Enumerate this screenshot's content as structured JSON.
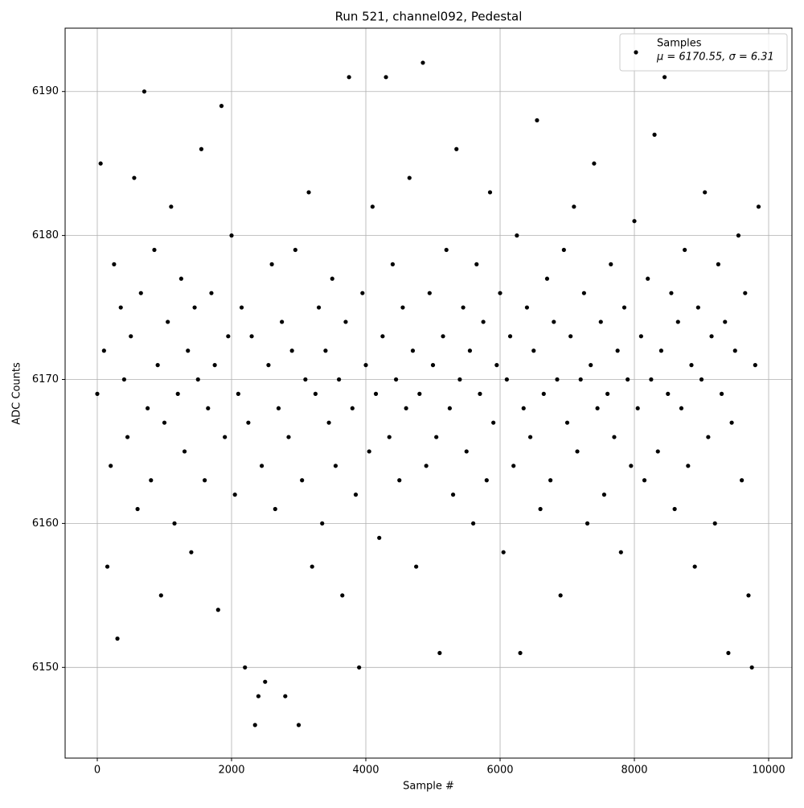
{
  "chart_data": {
    "type": "scatter",
    "title": "Run 521, channel092, Pedestal",
    "x_label": "Sample #",
    "y_label": "ADC Counts",
    "xlim": [
      -479,
      10347
    ],
    "ylim": [
      6143.7,
      6194.4
    ],
    "xticks": [
      0,
      2000,
      4000,
      6000,
      8000,
      10000
    ],
    "yticks": [
      6150,
      6160,
      6170,
      6180,
      6190
    ],
    "grid": true,
    "legend": "upper right",
    "series": [
      {
        "name": "Samples",
        "stats": "μ = 6170.55, σ = 6.31",
        "color": "#000000",
        "x": [
          0,
          50,
          100,
          150,
          200,
          250,
          300,
          350,
          400,
          450,
          500,
          550,
          600,
          650,
          700,
          750,
          800,
          850,
          900,
          950,
          1000,
          1050,
          1100,
          1150,
          1200,
          1250,
          1300,
          1350,
          1400,
          1450,
          1500,
          1550,
          1600,
          1650,
          1700,
          1750,
          1800,
          1850,
          1900,
          1950,
          2000,
          2050,
          2100,
          2150,
          2200,
          2250,
          2300,
          2350,
          2400,
          2450,
          2500,
          2550,
          2600,
          2650,
          2700,
          2750,
          2800,
          2850,
          2900,
          2950,
          3000,
          3050,
          3100,
          3150,
          3200,
          3250,
          3300,
          3350,
          3400,
          3450,
          3500,
          3550,
          3600,
          3650,
          3700,
          3750,
          3800,
          3850,
          3900,
          3950,
          4000,
          4050,
          4100,
          4150,
          4200,
          4250,
          4300,
          4350,
          4400,
          4450,
          4500,
          4550,
          4600,
          4650,
          4700,
          4750,
          4800,
          4850,
          4900,
          4950,
          5000,
          5050,
          5100,
          5150,
          5200,
          5250,
          5300,
          5350,
          5400,
          5450,
          5500,
          5550,
          5600,
          5650,
          5700,
          5750,
          5800,
          5850,
          5900,
          5950,
          6000,
          6050,
          6100,
          6150,
          6200,
          6250,
          6300,
          6350,
          6400,
          6450,
          6500,
          6550,
          6600,
          6650,
          6700,
          6750,
          6800,
          6850,
          6900,
          6950,
          7000,
          7050,
          7100,
          7150,
          7200,
          7250,
          7300,
          7350,
          7400,
          7450,
          7500,
          7550,
          7600,
          7650,
          7700,
          7750,
          7800,
          7850,
          7900,
          7950,
          8000,
          8050,
          8100,
          8150,
          8200,
          8250,
          8300,
          8350,
          8400,
          8450,
          8500,
          8550,
          8600,
          8650,
          8700,
          8750,
          8800,
          8850,
          8900,
          8950,
          9000,
          9050,
          9100,
          9150,
          9200,
          9250,
          9300,
          9350,
          9400,
          9450,
          9500,
          9550,
          9600,
          9650,
          9700,
          9750,
          9800,
          9850
        ],
        "values": [
          6169,
          6185,
          6172,
          6157,
          6164,
          6178,
          6152,
          6175,
          6170,
          6166,
          6173,
          6184,
          6161,
          6176,
          6190,
          6168,
          6163,
          6179,
          6171,
          6155,
          6167,
          6174,
          6182,
          6160,
          6169,
          6177,
          6165,
          6172,
          6158,
          6175,
          6170,
          6186,
          6163,
          6168,
          6176,
          6171,
          6154,
          6189,
          6166,
          6173,
          6180,
          6162,
          6169,
          6175,
          6150,
          6167,
          6173,
          6146,
          6148,
          6164,
          6149,
          6171,
          6178,
          6161,
          6168,
          6174,
          6148,
          6166,
          6172,
          6179,
          6146,
          6163,
          6170,
          6183,
          6157,
          6169,
          6175,
          6160,
          6172,
          6167,
          6177,
          6164,
          6170,
          6155,
          6174,
          6191,
          6168,
          6162,
          6150,
          6176,
          6171,
          6165,
          6182,
          6169,
          6159,
          6173,
          6191,
          6166,
          6178,
          6170,
          6163,
          6175,
          6168,
          6184,
          6172,
          6157,
          6169,
          6192,
          6164,
          6176,
          6171,
          6166,
          6151,
          6173,
          6179,
          6168,
          6162,
          6186,
          6170,
          6175,
          6165,
          6172,
          6160,
          6178,
          6169,
          6174,
          6163,
          6183,
          6167,
          6171,
          6176,
          6158,
          6170,
          6173,
          6164,
          6180,
          6151,
          6168,
          6175,
          6166,
          6172,
          6188,
          6161,
          6169,
          6177,
          6163,
          6174,
          6170,
          6155,
          6179,
          6167,
          6173,
          6182,
          6165,
          6170,
          6176,
          6160,
          6171,
          6185,
          6168,
          6174,
          6162,
          6169,
          6178,
          6166,
          6172,
          6158,
          6175,
          6170,
          6164,
          6181,
          6168,
          6173,
          6163,
          6177,
          6170,
          6187,
          6165,
          6172,
          6191,
          6169,
          6176,
          6161,
          6174,
          6168,
          6179,
          6164,
          6171,
          6157,
          6175,
          6170,
          6183,
          6166,
          6173,
          6160,
          6178,
          6169,
          6174,
          6151,
          6167,
          6172,
          6180,
          6163,
          6176,
          6155,
          6150,
          6171,
          6182
        ]
      }
    ]
  }
}
